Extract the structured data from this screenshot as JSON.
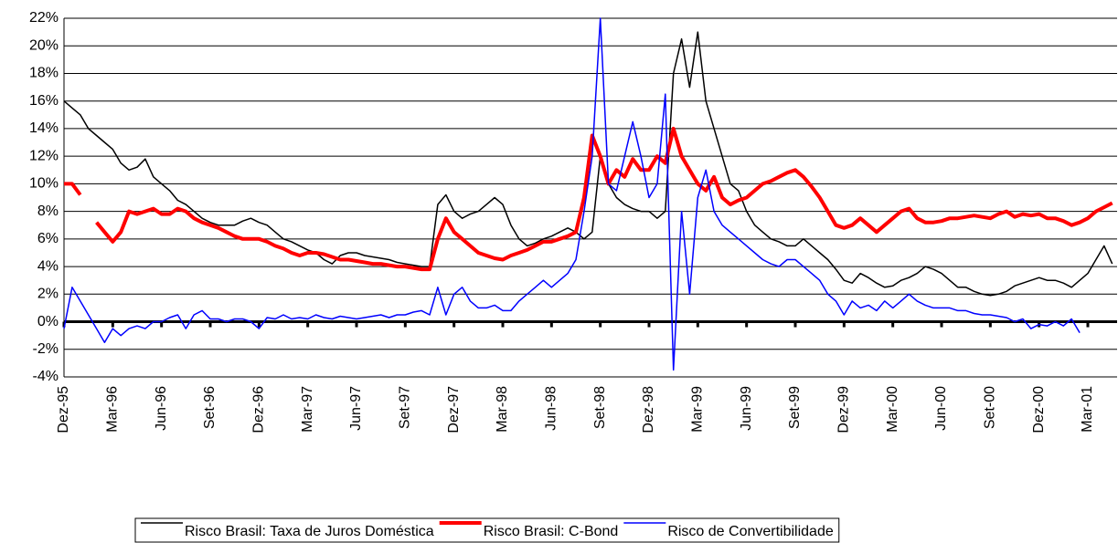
{
  "chart_data": {
    "type": "line",
    "categories": [
      "Dez-95",
      null,
      null,
      null,
      null,
      null,
      "Mar-96",
      null,
      null,
      null,
      null,
      null,
      "Jun-96",
      null,
      null,
      null,
      null,
      null,
      "Set-96",
      null,
      null,
      null,
      null,
      null,
      "Dez-96",
      null,
      null,
      null,
      null,
      null,
      "Mar-97",
      null,
      null,
      null,
      null,
      null,
      "Jun-97",
      null,
      null,
      null,
      null,
      null,
      "Set-97",
      null,
      null,
      null,
      null,
      null,
      "Dez-97",
      null,
      null,
      null,
      null,
      null,
      "Mar-98",
      null,
      null,
      null,
      null,
      null,
      "Jun-98",
      null,
      null,
      null,
      null,
      null,
      "Set-98",
      null,
      null,
      null,
      null,
      null,
      "Dez-98",
      null,
      null,
      null,
      null,
      null,
      "Mar-99",
      null,
      null,
      null,
      null,
      null,
      "Jun-99",
      null,
      null,
      null,
      null,
      null,
      "Set-99",
      null,
      null,
      null,
      null,
      null,
      "Dez-99",
      null,
      null,
      null,
      null,
      null,
      "Mar-00",
      null,
      null,
      null,
      null,
      null,
      "Jun-00",
      null,
      null,
      null,
      null,
      null,
      "Set-00",
      null,
      null,
      null,
      null,
      null,
      "Dez-00",
      null,
      null,
      null,
      null,
      null,
      "Mar-01",
      null,
      null,
      null
    ],
    "series": [
      {
        "name": "Risco Brasil: Taxa de Juros Doméstica",
        "color": "#000000",
        "width": 1.5,
        "values": [
          16,
          15.5,
          15,
          14,
          13.5,
          13,
          12.5,
          11.5,
          11,
          11.2,
          11.8,
          10.5,
          10,
          9.5,
          8.8,
          8.5,
          8,
          7.5,
          7.2,
          7,
          7,
          7,
          7.3,
          7.5,
          7.2,
          7,
          6.5,
          6,
          5.8,
          5.5,
          5.2,
          5,
          4.5,
          4.2,
          4.8,
          5,
          5,
          4.8,
          4.7,
          4.6,
          4.5,
          4.3,
          4.2,
          4.1,
          4,
          4,
          8.5,
          9.2,
          8,
          7.5,
          7.8,
          8,
          8.5,
          9,
          8.5,
          7,
          6,
          5.5,
          5.7,
          6,
          6.2,
          6.5,
          6.8,
          6.5,
          6,
          6.5,
          12,
          10,
          9,
          8.5,
          8.2,
          8,
          8,
          7.5,
          8,
          18,
          20.5,
          17,
          21,
          16,
          14,
          12,
          10,
          9.5,
          8,
          7,
          6.5,
          6,
          5.8,
          5.5,
          5.5,
          6,
          5.5,
          5,
          4.5,
          3.8,
          3,
          2.8,
          3.5,
          3.2,
          2.8,
          2.5,
          2.6,
          3,
          3.2,
          3.5,
          4,
          3.8,
          3.5,
          3,
          2.5,
          2.5,
          2.2,
          2,
          1.9,
          2,
          2.2,
          2.6,
          2.8,
          3,
          3.2,
          3,
          3,
          2.8,
          2.5,
          3,
          3.5,
          4.5,
          5.5,
          4.2
        ]
      },
      {
        "name": "Risco Brasil: C-Bond",
        "color": "#ff0000",
        "width": 4,
        "values": [
          10,
          10,
          9.2,
          null,
          7.2,
          6.5,
          5.8,
          6.5,
          8,
          7.8,
          8,
          8.2,
          7.8,
          7.8,
          8.2,
          8,
          7.5,
          7.2,
          7,
          6.8,
          6.5,
          6.2,
          6,
          6,
          6,
          5.8,
          5.5,
          5.3,
          5,
          4.8,
          5,
          5,
          4.9,
          4.7,
          4.5,
          4.5,
          4.4,
          4.3,
          4.2,
          4.2,
          4.1,
          4,
          4,
          3.9,
          3.8,
          3.8,
          6,
          7.5,
          6.5,
          6,
          5.5,
          5,
          4.8,
          4.6,
          4.5,
          4.8,
          5,
          5.2,
          5.5,
          5.8,
          5.8,
          6,
          6.2,
          6.5,
          9,
          13.5,
          12,
          10,
          11,
          10.5,
          11.8,
          11,
          11,
          12,
          11.5,
          14,
          12,
          11,
          10,
          9.5,
          10.5,
          9,
          8.5,
          8.8,
          9,
          9.5,
          10,
          10.2,
          10.5,
          10.8,
          11,
          10.5,
          9.8,
          9,
          8,
          7,
          6.8,
          7,
          7.5,
          7,
          6.5,
          7,
          7.5,
          8,
          8.2,
          7.5,
          7.2,
          7.2,
          7.3,
          7.5,
          7.5,
          7.6,
          7.7,
          7.6,
          7.5,
          7.8,
          8,
          7.6,
          7.8,
          7.7,
          7.8,
          7.5,
          7.5,
          7.3,
          7,
          7.2,
          7.5,
          8,
          8.3,
          8.6
        ]
      },
      {
        "name": "Risco de Convertibilidade",
        "color": "#0000ff",
        "width": 1.5,
        "values": [
          -0.5,
          2.5,
          1.5,
          0.5,
          -0.5,
          -1.5,
          -0.5,
          -1,
          -0.5,
          -0.3,
          -0.5,
          0,
          0,
          0.3,
          0.5,
          -0.5,
          0.5,
          0.8,
          0.2,
          0.2,
          0,
          0.2,
          0.2,
          0,
          -0.5,
          0.3,
          0.2,
          0.5,
          0.2,
          0.3,
          0.2,
          0.5,
          0.3,
          0.2,
          0.4,
          0.3,
          0.2,
          0.3,
          0.4,
          0.5,
          0.3,
          0.5,
          0.5,
          0.7,
          0.8,
          0.5,
          2.5,
          0.5,
          2,
          2.5,
          1.5,
          1,
          1,
          1.2,
          0.8,
          0.8,
          1.5,
          2,
          2.5,
          3,
          2.5,
          3,
          3.5,
          4.5,
          8,
          12,
          22,
          10,
          9.5,
          12,
          14.5,
          12,
          9,
          10,
          16.5,
          -3.5,
          8,
          2,
          9,
          11,
          8,
          7,
          6.5,
          6,
          5.5,
          5,
          4.5,
          4.2,
          4,
          4.5,
          4.5,
          4,
          3.5,
          3,
          2,
          1.5,
          0.5,
          1.5,
          1,
          1.2,
          0.8,
          1.5,
          1,
          1.5,
          2,
          1.5,
          1.2,
          1,
          1,
          1,
          0.8,
          0.8,
          0.6,
          0.5,
          0.5,
          0.4,
          0.3,
          0,
          0.2,
          -0.5,
          -0.2,
          -0.3,
          0,
          -0.3,
          0.2,
          -0.8,
          null,
          null,
          null,
          null
        ]
      }
    ],
    "ylim": [
      -4,
      22
    ],
    "yticks": [
      {
        "value": -4,
        "label": "-4%"
      },
      {
        "value": -2,
        "label": "-2%"
      },
      {
        "value": 0,
        "label": "0%"
      },
      {
        "value": 2,
        "label": "2%"
      },
      {
        "value": 4,
        "label": "4%"
      },
      {
        "value": 6,
        "label": "6%"
      },
      {
        "value": 8,
        "label": "8%"
      },
      {
        "value": 10,
        "label": "10%"
      },
      {
        "value": 12,
        "label": "12%"
      },
      {
        "value": 14,
        "label": "14%"
      },
      {
        "value": 16,
        "label": "16%"
      },
      {
        "value": 18,
        "label": "18%"
      },
      {
        "value": 20,
        "label": "20%"
      },
      {
        "value": 22,
        "label": "22%"
      }
    ],
    "grid": true,
    "legend": "bottom"
  }
}
